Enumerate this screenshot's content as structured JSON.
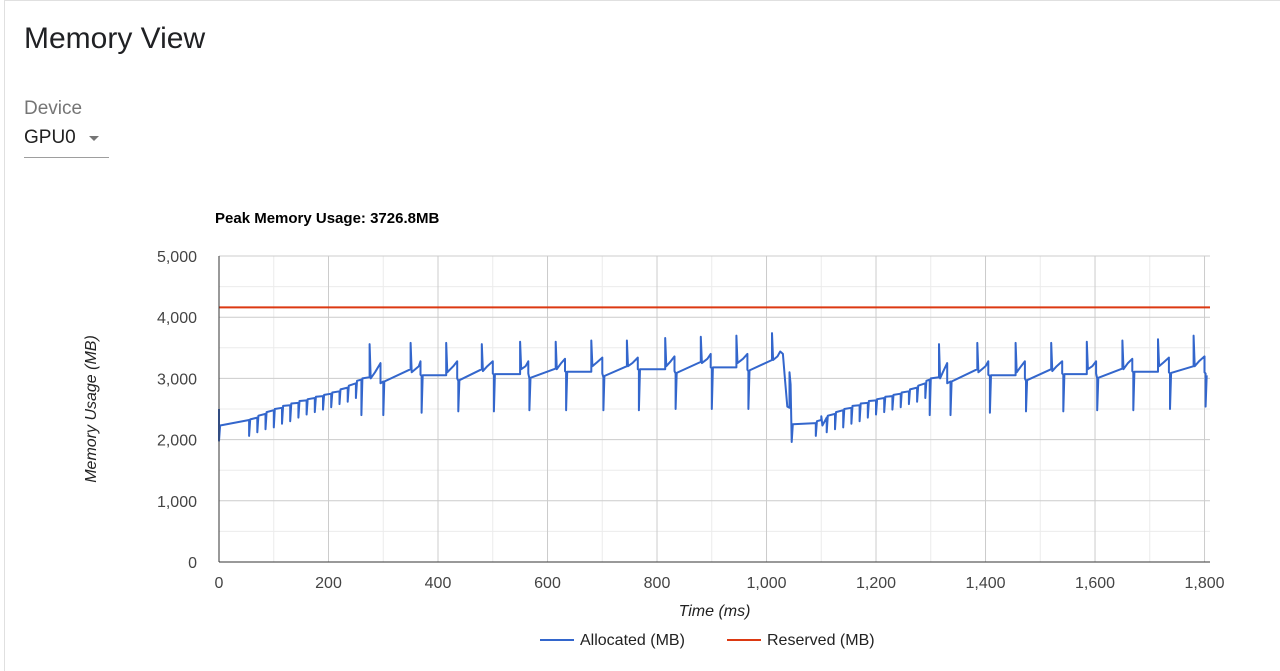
{
  "page": {
    "title": "Memory View",
    "device_label": "Device",
    "device_value": "GPU0"
  },
  "chart_data": {
    "type": "line",
    "title": "Peak Memory Usage: 3726.8MB",
    "xlabel": "Time (ms)",
    "ylabel": "Memory Usage (MB)",
    "xlim": [
      0,
      1810
    ],
    "ylim": [
      0,
      5000
    ],
    "xticks": [
      0,
      200,
      400,
      600,
      800,
      1000,
      1200,
      1400,
      1600,
      1800
    ],
    "xtick_labels": [
      "0",
      "200",
      "400",
      "600",
      "800",
      "1,000",
      "1,200",
      "1,400",
      "1,600",
      "1,800"
    ],
    "yticks": [
      0,
      1000,
      2000,
      3000,
      4000,
      5000
    ],
    "ytick_labels": [
      "0",
      "1,000",
      "2,000",
      "3,000",
      "4,000",
      "5,000"
    ],
    "grid": true,
    "legend_position": "bottom",
    "series": [
      {
        "name": "Allocated (MB)",
        "color": "#3366cc",
        "points": [
          [
            0,
            2500
          ],
          [
            0,
            1980
          ],
          [
            2,
            2230
          ],
          [
            55,
            2320
          ],
          [
            55,
            2060
          ],
          [
            57,
            2330
          ],
          [
            70,
            2360
          ],
          [
            70,
            2120
          ],
          [
            72,
            2390
          ],
          [
            85,
            2420
          ],
          [
            85,
            2170
          ],
          [
            87,
            2450
          ],
          [
            100,
            2480
          ],
          [
            100,
            2200
          ],
          [
            102,
            2500
          ],
          [
            115,
            2520
          ],
          [
            115,
            2260
          ],
          [
            117,
            2550
          ],
          [
            130,
            2560
          ],
          [
            130,
            2300
          ],
          [
            132,
            2590
          ],
          [
            145,
            2600
          ],
          [
            145,
            2360
          ],
          [
            147,
            2630
          ],
          [
            160,
            2640
          ],
          [
            160,
            2410
          ],
          [
            162,
            2660
          ],
          [
            175,
            2680
          ],
          [
            175,
            2450
          ],
          [
            177,
            2700
          ],
          [
            190,
            2710
          ],
          [
            190,
            2490
          ],
          [
            192,
            2730
          ],
          [
            205,
            2750
          ],
          [
            205,
            2530
          ],
          [
            207,
            2770
          ],
          [
            220,
            2790
          ],
          [
            220,
            2580
          ],
          [
            222,
            2820
          ],
          [
            235,
            2850
          ],
          [
            235,
            2620
          ],
          [
            237,
            2880
          ],
          [
            250,
            2920
          ],
          [
            250,
            2680
          ],
          [
            252,
            2960
          ],
          [
            260,
            2980
          ],
          [
            260,
            2400
          ],
          [
            262,
            3000
          ],
          [
            275,
            3020
          ],
          [
            275,
            3560
          ],
          [
            277,
            3000
          ],
          [
            285,
            3100
          ],
          [
            295,
            3250
          ],
          [
            295,
            2920
          ],
          [
            300,
            2950
          ],
          [
            300,
            2400
          ],
          [
            302,
            2950
          ],
          [
            350,
            3150
          ],
          [
            350,
            3580
          ],
          [
            352,
            3100
          ],
          [
            365,
            3200
          ],
          [
            368,
            3280
          ],
          [
            368,
            3060
          ],
          [
            370,
            3040
          ],
          [
            370,
            2440
          ],
          [
            372,
            3050
          ],
          [
            415,
            3050
          ],
          [
            415,
            3580
          ],
          [
            417,
            3100
          ],
          [
            428,
            3200
          ],
          [
            435,
            3280
          ],
          [
            435,
            3000
          ],
          [
            437,
            2960
          ],
          [
            437,
            2460
          ],
          [
            439,
            2970
          ],
          [
            480,
            3150
          ],
          [
            480,
            3560
          ],
          [
            482,
            3120
          ],
          [
            490,
            3200
          ],
          [
            500,
            3280
          ],
          [
            500,
            3080
          ],
          [
            502,
            3060
          ],
          [
            502,
            2460
          ],
          [
            504,
            3070
          ],
          [
            550,
            3070
          ],
          [
            550,
            3600
          ],
          [
            552,
            3150
          ],
          [
            560,
            3200
          ],
          [
            565,
            3280
          ],
          [
            565,
            3080
          ],
          [
            567,
            3000
          ],
          [
            567,
            2480
          ],
          [
            569,
            3010
          ],
          [
            615,
            3160
          ],
          [
            615,
            3600
          ],
          [
            617,
            3150
          ],
          [
            625,
            3250
          ],
          [
            632,
            3320
          ],
          [
            632,
            3120
          ],
          [
            634,
            3100
          ],
          [
            634,
            2480
          ],
          [
            636,
            3110
          ],
          [
            680,
            3110
          ],
          [
            680,
            3620
          ],
          [
            682,
            3200
          ],
          [
            690,
            3260
          ],
          [
            700,
            3340
          ],
          [
            700,
            3080
          ],
          [
            702,
            3020
          ],
          [
            702,
            2480
          ],
          [
            704,
            3040
          ],
          [
            745,
            3200
          ],
          [
            745,
            3620
          ],
          [
            747,
            3200
          ],
          [
            755,
            3250
          ],
          [
            765,
            3340
          ],
          [
            765,
            3150
          ],
          [
            767,
            3140
          ],
          [
            767,
            2480
          ],
          [
            769,
            3150
          ],
          [
            815,
            3150
          ],
          [
            815,
            3660
          ],
          [
            817,
            3200
          ],
          [
            825,
            3280
          ],
          [
            832,
            3360
          ],
          [
            832,
            3120
          ],
          [
            834,
            3080
          ],
          [
            834,
            2500
          ],
          [
            836,
            3090
          ],
          [
            880,
            3270
          ],
          [
            880,
            3680
          ],
          [
            882,
            3250
          ],
          [
            892,
            3320
          ],
          [
            898,
            3400
          ],
          [
            898,
            3180
          ],
          [
            900,
            3170
          ],
          [
            900,
            2500
          ],
          [
            902,
            3180
          ],
          [
            945,
            3180
          ],
          [
            945,
            3700
          ],
          [
            947,
            3250
          ],
          [
            957,
            3320
          ],
          [
            965,
            3400
          ],
          [
            965,
            3140
          ],
          [
            967,
            3120
          ],
          [
            967,
            2500
          ],
          [
            969,
            3130
          ],
          [
            1010,
            3300
          ],
          [
            1010,
            3740
          ],
          [
            1012,
            3300
          ],
          [
            1020,
            3360
          ],
          [
            1025,
            3440
          ],
          [
            1030,
            3400
          ],
          [
            1034,
            2960
          ],
          [
            1038,
            2540
          ],
          [
            1042,
            2520
          ],
          [
            1042,
            3100
          ],
          [
            1044,
            2900
          ],
          [
            1046,
            1960
          ],
          [
            1048,
            2250
          ],
          [
            1090,
            2270
          ],
          [
            1090,
            2060
          ],
          [
            1092,
            2300
          ],
          [
            1100,
            2320
          ],
          [
            1100,
            2380
          ],
          [
            1102,
            2230
          ],
          [
            1110,
            2360
          ],
          [
            1110,
            2120
          ],
          [
            1112,
            2390
          ],
          [
            1125,
            2420
          ],
          [
            1125,
            2170
          ],
          [
            1127,
            2450
          ],
          [
            1140,
            2480
          ],
          [
            1140,
            2200
          ],
          [
            1142,
            2500
          ],
          [
            1155,
            2520
          ],
          [
            1155,
            2260
          ],
          [
            1157,
            2550
          ],
          [
            1170,
            2560
          ],
          [
            1170,
            2300
          ],
          [
            1172,
            2590
          ],
          [
            1185,
            2600
          ],
          [
            1185,
            2360
          ],
          [
            1187,
            2630
          ],
          [
            1200,
            2640
          ],
          [
            1200,
            2410
          ],
          [
            1202,
            2660
          ],
          [
            1215,
            2680
          ],
          [
            1215,
            2450
          ],
          [
            1217,
            2700
          ],
          [
            1230,
            2710
          ],
          [
            1230,
            2490
          ],
          [
            1232,
            2730
          ],
          [
            1245,
            2750
          ],
          [
            1245,
            2530
          ],
          [
            1247,
            2770
          ],
          [
            1260,
            2790
          ],
          [
            1260,
            2580
          ],
          [
            1262,
            2820
          ],
          [
            1275,
            2850
          ],
          [
            1275,
            2620
          ],
          [
            1277,
            2880
          ],
          [
            1290,
            2920
          ],
          [
            1290,
            2680
          ],
          [
            1292,
            2960
          ],
          [
            1298,
            2980
          ],
          [
            1298,
            2400
          ],
          [
            1300,
            3000
          ],
          [
            1315,
            3020
          ],
          [
            1315,
            3560
          ],
          [
            1317,
            3000
          ],
          [
            1322,
            3100
          ],
          [
            1330,
            3250
          ],
          [
            1330,
            2920
          ],
          [
            1336,
            2950
          ],
          [
            1336,
            2400
          ],
          [
            1338,
            2950
          ],
          [
            1385,
            3150
          ],
          [
            1385,
            3580
          ],
          [
            1387,
            3100
          ],
          [
            1400,
            3200
          ],
          [
            1405,
            3280
          ],
          [
            1405,
            3060
          ],
          [
            1408,
            3040
          ],
          [
            1408,
            2440
          ],
          [
            1410,
            3050
          ],
          [
            1455,
            3050
          ],
          [
            1455,
            3580
          ],
          [
            1457,
            3100
          ],
          [
            1465,
            3200
          ],
          [
            1472,
            3280
          ],
          [
            1472,
            3000
          ],
          [
            1474,
            2960
          ],
          [
            1474,
            2460
          ],
          [
            1476,
            2970
          ],
          [
            1520,
            3150
          ],
          [
            1520,
            3580
          ],
          [
            1522,
            3120
          ],
          [
            1530,
            3200
          ],
          [
            1540,
            3280
          ],
          [
            1540,
            3080
          ],
          [
            1542,
            3060
          ],
          [
            1542,
            2460
          ],
          [
            1544,
            3070
          ],
          [
            1585,
            3070
          ],
          [
            1585,
            3600
          ],
          [
            1587,
            3150
          ],
          [
            1595,
            3200
          ],
          [
            1602,
            3280
          ],
          [
            1602,
            3080
          ],
          [
            1604,
            3000
          ],
          [
            1604,
            2480
          ],
          [
            1606,
            3010
          ],
          [
            1650,
            3160
          ],
          [
            1650,
            3620
          ],
          [
            1652,
            3150
          ],
          [
            1660,
            3250
          ],
          [
            1668,
            3320
          ],
          [
            1668,
            3120
          ],
          [
            1670,
            3100
          ],
          [
            1670,
            2480
          ],
          [
            1672,
            3110
          ],
          [
            1715,
            3110
          ],
          [
            1715,
            3640
          ],
          [
            1717,
            3200
          ],
          [
            1725,
            3260
          ],
          [
            1735,
            3340
          ],
          [
            1735,
            3100
          ],
          [
            1737,
            3080
          ],
          [
            1737,
            2500
          ],
          [
            1739,
            3090
          ],
          [
            1780,
            3200
          ],
          [
            1780,
            3700
          ],
          [
            1782,
            3200
          ],
          [
            1790,
            3280
          ],
          [
            1800,
            3360
          ],
          [
            1800,
            3100
          ],
          [
            1802,
            3080
          ],
          [
            1802,
            2540
          ],
          [
            1804,
            3050
          ]
        ]
      },
      {
        "name": "Reserved (MB)",
        "color": "#dc3912",
        "points": [
          [
            0,
            4160
          ],
          [
            1810,
            4160
          ]
        ]
      }
    ]
  }
}
